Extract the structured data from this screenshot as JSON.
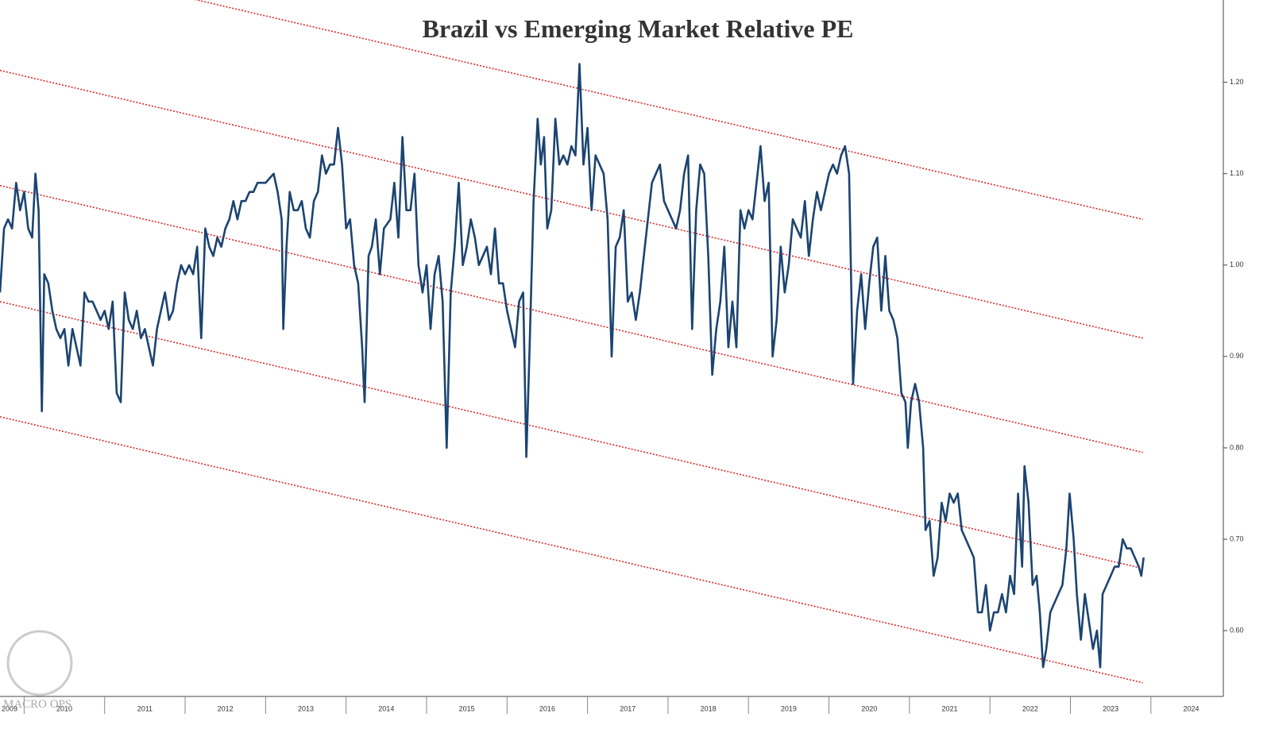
{
  "chart_data": {
    "type": "line",
    "title": "Brazil vs Emerging Market Relative PE",
    "watermark": "MACRO OPS",
    "color": "#1b4471",
    "xlim": [
      2009.7,
      2024.9
    ],
    "ylim": [
      0.528,
      1.29
    ],
    "xticks": [
      {
        "value": 2009,
        "label": "2009"
      },
      {
        "value": 2010,
        "label": "2010"
      },
      {
        "value": 2011,
        "label": "2011"
      },
      {
        "value": 2012,
        "label": "2012"
      },
      {
        "value": 2013,
        "label": "2013"
      },
      {
        "value": 2014,
        "label": "2014"
      },
      {
        "value": 2015,
        "label": "2015"
      },
      {
        "value": 2016,
        "label": "2016"
      },
      {
        "value": 2017,
        "label": "2017"
      },
      {
        "value": 2018,
        "label": "2018"
      },
      {
        "value": 2019,
        "label": "2019"
      },
      {
        "value": 2020,
        "label": "2020"
      },
      {
        "value": 2021,
        "label": "2021"
      },
      {
        "value": 2022,
        "label": "2022"
      },
      {
        "value": 2023,
        "label": "2023"
      },
      {
        "value": 2024,
        "label": "2024"
      }
    ],
    "yticks": [
      {
        "value": 0.6,
        "label": "0.60"
      },
      {
        "value": 0.7,
        "label": "0.70"
      },
      {
        "value": 0.8,
        "label": "0.80"
      },
      {
        "value": 0.9,
        "label": "0.90"
      },
      {
        "value": 1.0,
        "label": "1.00"
      },
      {
        "value": 1.1,
        "label": "1.10"
      },
      {
        "value": 1.2,
        "label": "1.20"
      }
    ],
    "trend_lines": {
      "color": "#e02828",
      "lines": [
        {
          "x": [
            2009.7,
            2023.9
          ],
          "y": [
            1.34,
            1.05
          ]
        },
        {
          "x": [
            2009.7,
            2023.9
          ],
          "y": [
            1.213,
            0.92
          ]
        },
        {
          "x": [
            2009.7,
            2023.9
          ],
          "y": [
            1.087,
            0.795
          ]
        },
        {
          "x": [
            2009.7,
            2023.9
          ],
          "y": [
            0.96,
            0.668
          ]
        },
        {
          "x": [
            2009.7,
            2023.9
          ],
          "y": [
            0.834,
            0.543
          ]
        }
      ]
    },
    "x": [
      2009.7,
      2009.75,
      2009.8,
      2009.85,
      2009.9,
      2009.95,
      2010.0,
      2010.05,
      2010.1,
      2010.14,
      2010.18,
      2010.22,
      2010.25,
      2010.3,
      2010.35,
      2010.4,
      2010.45,
      2010.5,
      2010.55,
      2010.6,
      2010.65,
      2010.7,
      2010.75,
      2010.8,
      2010.85,
      2010.9,
      2010.95,
      2011.0,
      2011.05,
      2011.1,
      2011.15,
      2011.2,
      2011.25,
      2011.3,
      2011.35,
      2011.4,
      2011.45,
      2011.5,
      2011.55,
      2011.6,
      2011.65,
      2011.7,
      2011.75,
      2011.8,
      2011.85,
      2011.9,
      2011.95,
      2012.0,
      2012.05,
      2012.1,
      2012.15,
      2012.2,
      2012.25,
      2012.3,
      2012.35,
      2012.4,
      2012.45,
      2012.5,
      2012.55,
      2012.6,
      2012.65,
      2012.7,
      2012.75,
      2012.8,
      2012.85,
      2012.9,
      2013.0,
      2013.1,
      2013.15,
      2013.2,
      2013.22,
      2013.26,
      2013.3,
      2013.35,
      2013.4,
      2013.45,
      2013.5,
      2013.55,
      2013.6,
      2013.65,
      2013.7,
      2013.75,
      2013.8,
      2013.85,
      2013.9,
      2013.95,
      2014.0,
      2014.05,
      2014.1,
      2014.15,
      2014.2,
      2014.23,
      2014.28,
      2014.32,
      2014.37,
      2014.42,
      2014.47,
      2014.55,
      2014.6,
      2014.65,
      2014.7,
      2014.75,
      2014.8,
      2014.85,
      2014.9,
      2014.95,
      2015.0,
      2015.05,
      2015.1,
      2015.15,
      2015.2,
      2015.25,
      2015.3,
      2015.35,
      2015.4,
      2015.45,
      2015.5,
      2015.55,
      2015.6,
      2015.65,
      2015.7,
      2015.75,
      2015.8,
      2015.85,
      2015.9,
      2015.95,
      2016.0,
      2016.05,
      2016.1,
      2016.15,
      2016.2,
      2016.24,
      2016.28,
      2016.33,
      2016.38,
      2016.42,
      2016.46,
      2016.5,
      2016.55,
      2016.6,
      2016.65,
      2016.7,
      2016.75,
      2016.8,
      2016.85,
      2016.9,
      2016.95,
      2017.0,
      2017.05,
      2017.1,
      2017.15,
      2017.2,
      2017.25,
      2017.3,
      2017.35,
      2017.4,
      2017.45,
      2017.5,
      2017.55,
      2017.6,
      2017.65,
      2017.7,
      2017.75,
      2017.8,
      2017.85,
      2017.9,
      2017.95,
      2018.0,
      2018.05,
      2018.1,
      2018.15,
      2018.2,
      2018.25,
      2018.3,
      2018.35,
      2018.4,
      2018.45,
      2018.5,
      2018.55,
      2018.6,
      2018.65,
      2018.7,
      2018.75,
      2018.8,
      2018.85,
      2018.9,
      2018.95,
      2019.0,
      2019.05,
      2019.1,
      2019.15,
      2019.2,
      2019.25,
      2019.3,
      2019.35,
      2019.4,
      2019.45,
      2019.5,
      2019.55,
      2019.6,
      2019.65,
      2019.7,
      2019.75,
      2019.8,
      2019.85,
      2019.9,
      2019.95,
      2020.0,
      2020.05,
      2020.1,
      2020.15,
      2020.2,
      2020.25,
      2020.3,
      2020.35,
      2020.4,
      2020.45,
      2020.5,
      2020.55,
      2020.6,
      2020.65,
      2020.7,
      2020.75,
      2020.8,
      2020.85,
      2020.9,
      2020.95,
      2020.98,
      2021.02,
      2021.07,
      2021.12,
      2021.17,
      2021.2,
      2021.25,
      2021.3,
      2021.35,
      2021.4,
      2021.45,
      2021.5,
      2021.55,
      2021.6,
      2021.65,
      2021.7,
      2021.75,
      2021.8,
      2021.85,
      2021.9,
      2021.95,
      2022.0,
      2022.05,
      2022.1,
      2022.15,
      2022.2,
      2022.25,
      2022.3,
      2022.35,
      2022.4,
      2022.43,
      2022.48,
      2022.53,
      2022.58,
      2022.62,
      2022.66,
      2022.7,
      2022.75,
      2022.8,
      2022.85,
      2022.9,
      2022.95,
      2022.99,
      2023.04,
      2023.08,
      2023.13,
      2023.18,
      2023.23,
      2023.28,
      2023.33,
      2023.37,
      2023.4,
      2023.45,
      2023.5,
      2023.55,
      2023.6,
      2023.65,
      2023.7,
      2023.75,
      2023.8,
      2023.85,
      2023.88,
      2023.91
    ],
    "values": [
      0.97,
      1.04,
      1.05,
      1.04,
      1.09,
      1.06,
      1.08,
      1.04,
      1.03,
      1.1,
      1.06,
      0.84,
      0.99,
      0.98,
      0.95,
      0.93,
      0.92,
      0.93,
      0.89,
      0.93,
      0.91,
      0.89,
      0.97,
      0.96,
      0.96,
      0.95,
      0.94,
      0.95,
      0.93,
      0.96,
      0.86,
      0.85,
      0.97,
      0.94,
      0.93,
      0.95,
      0.92,
      0.93,
      0.91,
      0.89,
      0.93,
      0.95,
      0.97,
      0.94,
      0.95,
      0.98,
      1.0,
      0.99,
      1.0,
      0.99,
      1.02,
      0.92,
      1.04,
      1.02,
      1.01,
      1.03,
      1.02,
      1.04,
      1.05,
      1.07,
      1.05,
      1.07,
      1.07,
      1.08,
      1.08,
      1.09,
      1.09,
      1.1,
      1.08,
      1.05,
      0.93,
      1.02,
      1.08,
      1.06,
      1.06,
      1.07,
      1.04,
      1.03,
      1.07,
      1.08,
      1.12,
      1.1,
      1.11,
      1.11,
      1.15,
      1.11,
      1.04,
      1.05,
      1.0,
      0.98,
      0.91,
      0.85,
      1.01,
      1.02,
      1.05,
      0.99,
      1.04,
      1.05,
      1.09,
      1.03,
      1.14,
      1.06,
      1.06,
      1.1,
      1.0,
      0.97,
      1.0,
      0.93,
      0.99,
      1.01,
      0.96,
      0.8,
      0.97,
      1.02,
      1.09,
      1.0,
      1.02,
      1.05,
      1.03,
      1.0,
      1.01,
      1.02,
      0.99,
      1.04,
      0.98,
      0.98,
      0.95,
      0.93,
      0.91,
      0.96,
      0.97,
      0.79,
      0.91,
      1.07,
      1.16,
      1.11,
      1.14,
      1.04,
      1.06,
      1.16,
      1.11,
      1.12,
      1.11,
      1.13,
      1.12,
      1.22,
      1.11,
      1.15,
      1.06,
      1.12,
      1.11,
      1.1,
      1.05,
      0.9,
      1.02,
      1.03,
      1.06,
      0.96,
      0.97,
      0.94,
      0.97,
      1.01,
      1.05,
      1.09,
      1.1,
      1.11,
      1.07,
      1.06,
      1.05,
      1.04,
      1.06,
      1.1,
      1.12,
      0.93,
      1.06,
      1.11,
      1.1,
      1.01,
      0.88,
      0.93,
      0.96,
      1.02,
      0.91,
      0.96,
      0.91,
      1.06,
      1.04,
      1.06,
      1.05,
      1.09,
      1.13,
      1.07,
      1.09,
      0.9,
      0.94,
      1.02,
      0.97,
      1.0,
      1.05,
      1.04,
      1.03,
      1.07,
      1.01,
      1.05,
      1.08,
      1.06,
      1.08,
      1.1,
      1.11,
      1.1,
      1.12,
      1.13,
      1.1,
      0.87,
      0.95,
      0.99,
      0.93,
      0.98,
      1.02,
      1.03,
      0.95,
      1.01,
      0.95,
      0.94,
      0.92,
      0.86,
      0.85,
      0.8,
      0.85,
      0.87,
      0.85,
      0.8,
      0.71,
      0.72,
      0.66,
      0.68,
      0.74,
      0.72,
      0.75,
      0.74,
      0.75,
      0.71,
      0.7,
      0.69,
      0.68,
      0.62,
      0.62,
      0.65,
      0.6,
      0.62,
      0.62,
      0.64,
      0.62,
      0.66,
      0.64,
      0.75,
      0.67,
      0.78,
      0.74,
      0.65,
      0.66,
      0.62,
      0.56,
      0.58,
      0.62,
      0.63,
      0.64,
      0.65,
      0.69,
      0.75,
      0.7,
      0.64,
      0.59,
      0.64,
      0.61,
      0.58,
      0.6,
      0.56,
      0.64,
      0.65,
      0.66,
      0.67,
      0.67,
      0.7,
      0.69,
      0.69,
      0.68,
      0.67,
      0.66,
      0.68
    ]
  }
}
